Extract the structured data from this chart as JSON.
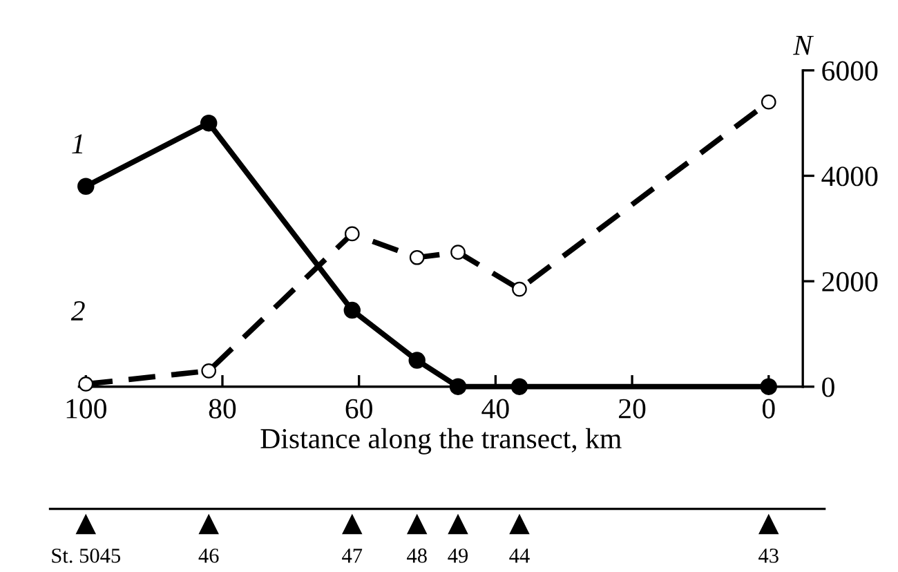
{
  "chart_data": {
    "type": "line",
    "xlabel": "Distance along the transect, km",
    "ylabel": "N",
    "xlim": [
      101,
      -5
    ],
    "xticks": [
      100,
      80,
      60,
      40,
      20,
      0
    ],
    "ylim": [
      0,
      6000
    ],
    "yticks": [
      0,
      2000,
      4000,
      6000
    ],
    "grid": false,
    "legend": false,
    "marker": "circle",
    "series": [
      {
        "name": "1",
        "color": "#000000",
        "line_style": "solid",
        "x": [
          100,
          82,
          61,
          51.5,
          45.5,
          36.5,
          0
        ],
        "values": [
          3800,
          5000,
          1450,
          500,
          0,
          0,
          0
        ]
      },
      {
        "name": "2",
        "color": "#000000",
        "line_style": "dashed",
        "x": [
          100,
          82,
          61,
          51.5,
          45.5,
          36.5,
          0
        ],
        "values": [
          50,
          300,
          2900,
          2450,
          2550,
          1850,
          5400
        ]
      }
    ],
    "annotations": [
      "St. 5045",
      "46",
      "47",
      "48",
      "49",
      "44",
      "43"
    ]
  }
}
